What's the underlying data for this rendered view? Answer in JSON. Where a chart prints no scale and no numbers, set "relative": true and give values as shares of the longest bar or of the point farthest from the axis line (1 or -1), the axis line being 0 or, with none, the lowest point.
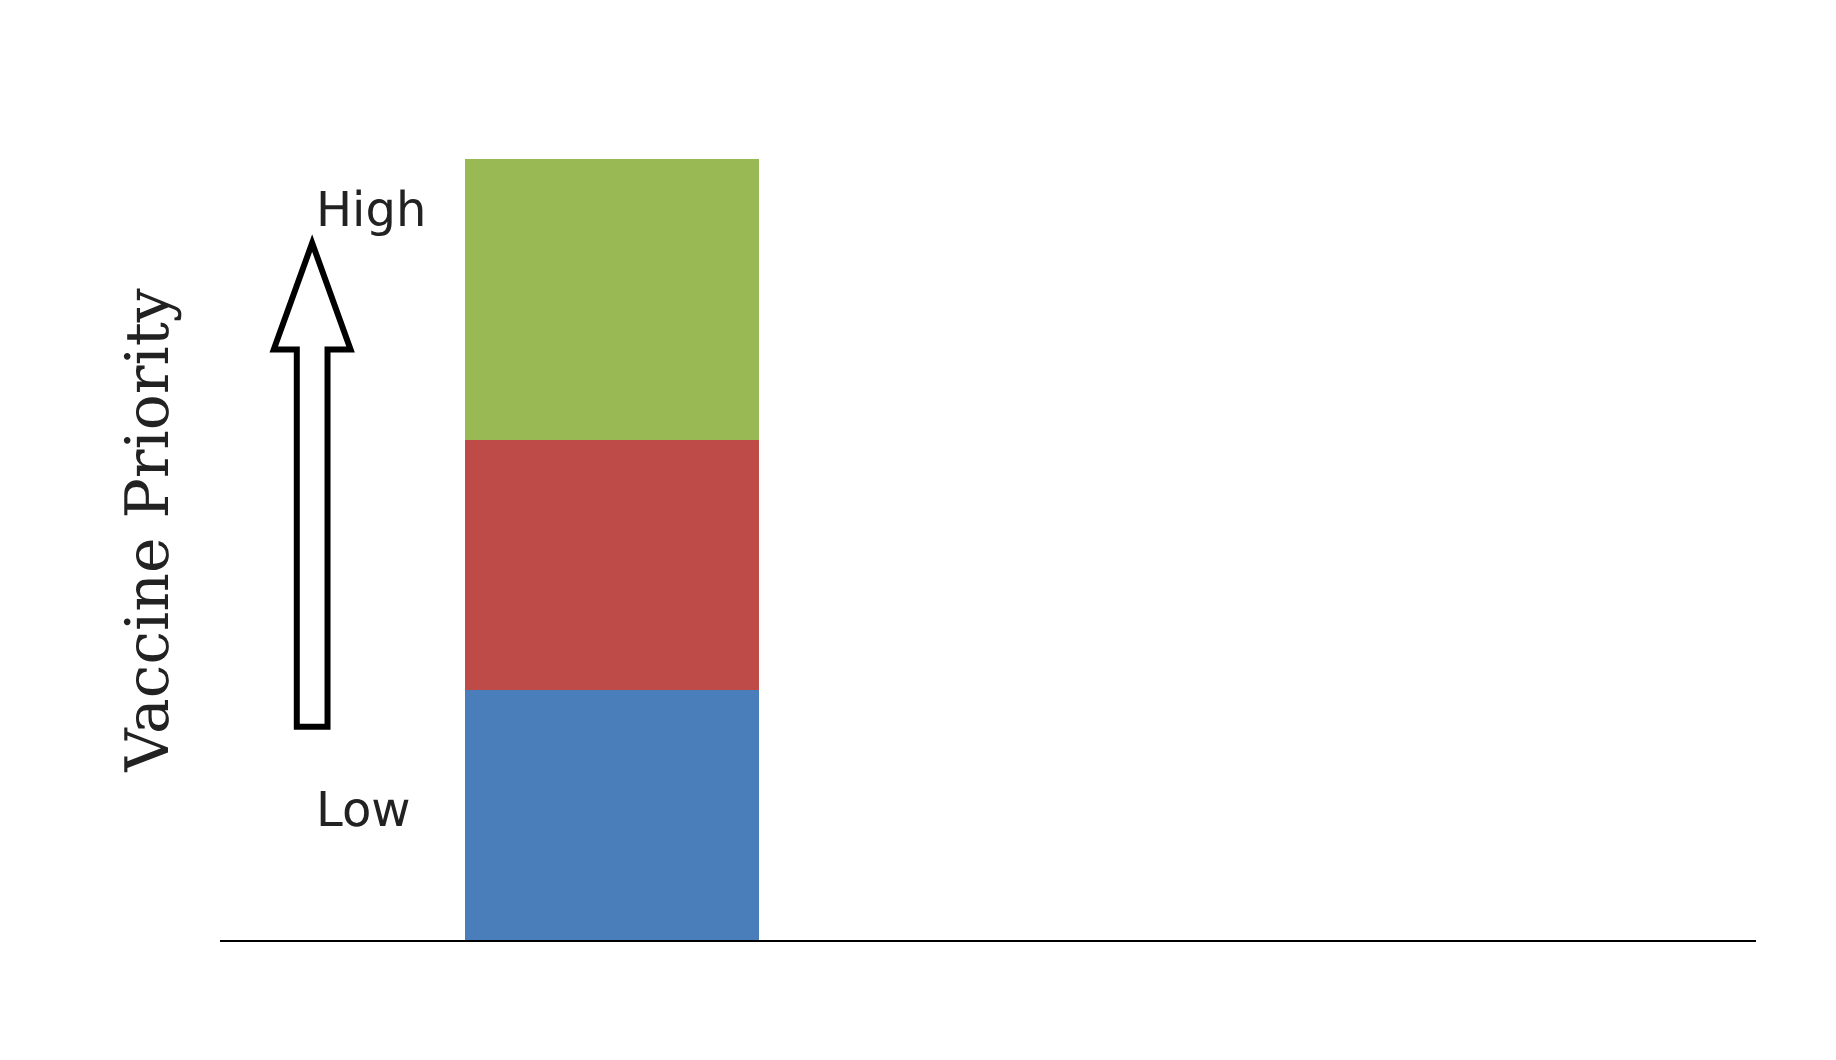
{
  "chart_data": {
    "type": "bar",
    "stacked": true,
    "relative": true,
    "ylabel": "Vaccine Priority",
    "categories": [
      null
    ],
    "series": [
      {
        "color": "#4a7ebb",
        "values": [
          0.32
        ]
      },
      {
        "color": "#be4b48",
        "values": [
          0.32
        ]
      },
      {
        "color": "#98b954",
        "values": [
          0.36
        ]
      }
    ],
    "annotations": [
      "High",
      "Low"
    ]
  }
}
